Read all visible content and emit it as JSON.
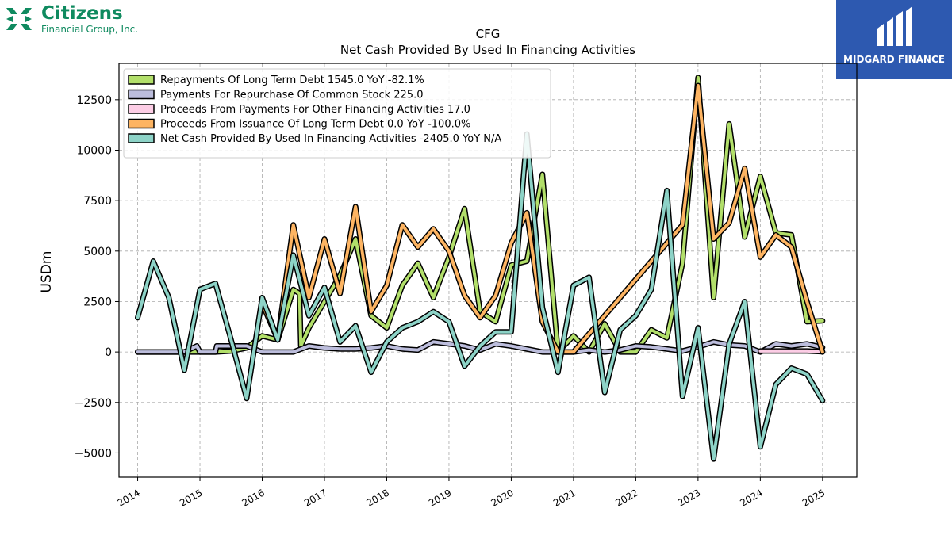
{
  "logos": {
    "left_brand": "Citizens",
    "left_sub": "Financial Group, Inc.",
    "right_brand": "MIDGARD FINANCE"
  },
  "chart_data": {
    "type": "line",
    "title": "CFG",
    "subtitle": "Net Cash Provided By Used In Financing Activities",
    "ylabel": "USDm",
    "xlim": [
      2013.7,
      2025.55
    ],
    "ylim": [
      -6200,
      14300
    ],
    "yticks": [
      -5000,
      -2500,
      0,
      2500,
      5000,
      7500,
      10000,
      12500
    ],
    "ytick_labels": [
      "−5000",
      "−2500",
      "0",
      "2500",
      "5000",
      "7500",
      "10000",
      "12500"
    ],
    "xticks": [
      2014,
      2015,
      2016,
      2017,
      2018,
      2019,
      2020,
      2021,
      2022,
      2023,
      2024,
      2025
    ],
    "xtick_labels": [
      "2014",
      "2015",
      "2016",
      "2017",
      "2018",
      "2019",
      "2020",
      "2021",
      "2022",
      "2023",
      "2024",
      "2025"
    ],
    "grid": true,
    "legend_position": "top-left",
    "series": [
      {
        "name": "Repayments Of Long Term Debt  1545.0 YoY -82.1%",
        "color": "#b2df6a",
        "points": [
          [
            2014.0,
            0
          ],
          [
            2014.25,
            0
          ],
          [
            2014.5,
            0
          ],
          [
            2014.75,
            0
          ],
          [
            2015.0,
            0
          ],
          [
            2015.25,
            0
          ],
          [
            2015.5,
            50
          ],
          [
            2015.75,
            200
          ],
          [
            2016.0,
            800
          ],
          [
            2016.25,
            600
          ],
          [
            2016.5,
            3100
          ],
          [
            2016.6,
            2900
          ],
          [
            2016.62,
            300
          ],
          [
            2016.75,
            1200
          ],
          [
            2017.0,
            2500
          ],
          [
            2017.25,
            3800
          ],
          [
            2017.5,
            5600
          ],
          [
            2017.75,
            1800
          ],
          [
            2018.0,
            1200
          ],
          [
            2018.25,
            3300
          ],
          [
            2018.5,
            4400
          ],
          [
            2018.75,
            2700
          ],
          [
            2019.0,
            4700
          ],
          [
            2019.25,
            7100
          ],
          [
            2019.5,
            2000
          ],
          [
            2019.75,
            1500
          ],
          [
            2020.0,
            4300
          ],
          [
            2020.25,
            4500
          ],
          [
            2020.5,
            8800
          ],
          [
            2020.75,
            0
          ],
          [
            2021.0,
            800
          ],
          [
            2021.25,
            0
          ],
          [
            2021.5,
            1400
          ],
          [
            2021.75,
            0
          ],
          [
            2022.0,
            0
          ],
          [
            2022.25,
            1100
          ],
          [
            2022.5,
            700
          ],
          [
            2022.75,
            4400
          ],
          [
            2023.0,
            13600
          ],
          [
            2023.25,
            2700
          ],
          [
            2023.5,
            11300
          ],
          [
            2023.75,
            5700
          ],
          [
            2024.0,
            8700
          ],
          [
            2024.25,
            5900
          ],
          [
            2024.5,
            5800
          ],
          [
            2024.75,
            1500
          ],
          [
            2025.0,
            1545
          ]
        ]
      },
      {
        "name": "Payments For Repurchase Of Common Stock  225.0",
        "color": "#bcbddc",
        "points": [
          [
            2014.0,
            0
          ],
          [
            2014.25,
            0
          ],
          [
            2014.5,
            0
          ],
          [
            2014.75,
            0
          ],
          [
            2014.95,
            300
          ],
          [
            2015.0,
            0
          ],
          [
            2015.25,
            0
          ],
          [
            2015.27,
            300
          ],
          [
            2015.5,
            300
          ],
          [
            2015.75,
            300
          ],
          [
            2016.0,
            0
          ],
          [
            2016.25,
            0
          ],
          [
            2016.5,
            0
          ],
          [
            2016.75,
            300
          ],
          [
            2017.0,
            200
          ],
          [
            2017.25,
            150
          ],
          [
            2017.5,
            150
          ],
          [
            2017.75,
            200
          ],
          [
            2018.0,
            300
          ],
          [
            2018.25,
            150
          ],
          [
            2018.5,
            100
          ],
          [
            2018.75,
            500
          ],
          [
            2019.0,
            400
          ],
          [
            2019.25,
            300
          ],
          [
            2019.5,
            100
          ],
          [
            2019.75,
            400
          ],
          [
            2020.0,
            300
          ],
          [
            2020.25,
            150
          ],
          [
            2020.5,
            0
          ],
          [
            2020.75,
            0
          ],
          [
            2021.0,
            0
          ],
          [
            2021.25,
            100
          ],
          [
            2021.5,
            0
          ],
          [
            2021.75,
            100
          ],
          [
            2022.0,
            300
          ],
          [
            2022.25,
            250
          ],
          [
            2022.5,
            150
          ],
          [
            2022.75,
            50
          ],
          [
            2023.0,
            250
          ],
          [
            2023.25,
            500
          ],
          [
            2023.5,
            350
          ],
          [
            2023.75,
            300
          ],
          [
            2024.0,
            0
          ],
          [
            2024.25,
            400
          ],
          [
            2024.5,
            300
          ],
          [
            2024.75,
            400
          ],
          [
            2025.0,
            225
          ]
        ]
      },
      {
        "name": "Proceeds From Payments For Other Financing Activities  17.0",
        "color": "#fccde5",
        "points": [
          [
            2024.0,
            50
          ],
          [
            2024.25,
            50
          ],
          [
            2024.5,
            50
          ],
          [
            2024.75,
            50
          ],
          [
            2025.0,
            17
          ]
        ]
      },
      {
        "name": "Proceeds From Issuance Of Long Term Debt  0.0 YoY -100.0%",
        "color": "#fdb462",
        "points": [
          [
            2016.0,
            2400
          ],
          [
            2016.25,
            600
          ],
          [
            2016.5,
            6300
          ],
          [
            2016.75,
            2700
          ],
          [
            2017.0,
            5600
          ],
          [
            2017.25,
            2900
          ],
          [
            2017.5,
            7200
          ],
          [
            2017.75,
            2000
          ],
          [
            2018.0,
            3300
          ],
          [
            2018.25,
            6300
          ],
          [
            2018.5,
            5200
          ],
          [
            2018.75,
            6100
          ],
          [
            2019.0,
            5000
          ],
          [
            2019.25,
            2800
          ],
          [
            2019.5,
            1700
          ],
          [
            2019.75,
            2800
          ],
          [
            2020.0,
            5400
          ],
          [
            2020.25,
            6900
          ],
          [
            2020.5,
            1500
          ],
          [
            2020.75,
            0
          ],
          [
            2021.0,
            0
          ],
          [
            2022.75,
            6300
          ],
          [
            2023.0,
            13200
          ],
          [
            2023.25,
            5600
          ],
          [
            2023.5,
            6400
          ],
          [
            2023.75,
            9100
          ],
          [
            2024.0,
            4700
          ],
          [
            2024.25,
            5800
          ],
          [
            2024.5,
            5200
          ],
          [
            2024.75,
            2500
          ],
          [
            2025.0,
            0
          ]
        ]
      },
      {
        "name": "Net Cash Provided By Used In Financing Activities  -2405.0 YoY N/A",
        "color": "#8dd3c7",
        "points": [
          [
            2014.0,
            1700
          ],
          [
            2014.25,
            4500
          ],
          [
            2014.5,
            2700
          ],
          [
            2014.75,
            -900
          ],
          [
            2015.0,
            3100
          ],
          [
            2015.25,
            3400
          ],
          [
            2015.5,
            600
          ],
          [
            2015.75,
            -2300
          ],
          [
            2016.0,
            2700
          ],
          [
            2016.25,
            600
          ],
          [
            2016.5,
            4800
          ],
          [
            2016.75,
            1800
          ],
          [
            2017.0,
            3200
          ],
          [
            2017.25,
            500
          ],
          [
            2017.5,
            1300
          ],
          [
            2017.75,
            -1000
          ],
          [
            2018.0,
            500
          ],
          [
            2018.25,
            1200
          ],
          [
            2018.5,
            1500
          ],
          [
            2018.75,
            2000
          ],
          [
            2019.0,
            1500
          ],
          [
            2019.25,
            -700
          ],
          [
            2019.5,
            300
          ],
          [
            2019.75,
            1000
          ],
          [
            2020.0,
            1000
          ],
          [
            2020.25,
            10800
          ],
          [
            2020.5,
            2200
          ],
          [
            2020.75,
            -1000
          ],
          [
            2021.0,
            3300
          ],
          [
            2021.25,
            3700
          ],
          [
            2021.5,
            -2000
          ],
          [
            2021.75,
            1100
          ],
          [
            2022.0,
            1800
          ],
          [
            2022.25,
            3100
          ],
          [
            2022.5,
            8000
          ],
          [
            2022.75,
            -2200
          ],
          [
            2023.0,
            1200
          ],
          [
            2023.25,
            -5300
          ],
          [
            2023.5,
            400
          ],
          [
            2023.75,
            2500
          ],
          [
            2024.0,
            -4700
          ],
          [
            2024.25,
            -1600
          ],
          [
            2024.5,
            -800
          ],
          [
            2024.75,
            -1100
          ],
          [
            2025.0,
            -2405
          ]
        ]
      }
    ]
  }
}
